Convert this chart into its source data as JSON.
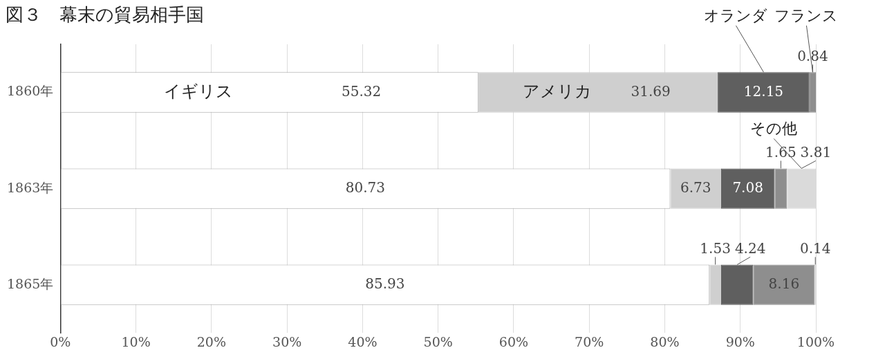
{
  "chart_data": {
    "type": "bar",
    "orientation": "horizontal",
    "stacked": true,
    "title": "図３　幕末の貿易相手国",
    "categories": [
      "1860年",
      "1863年",
      "1865年"
    ],
    "series": [
      {
        "name": "イギリス",
        "color": "#ffffff",
        "values": [
          55.32,
          80.73,
          85.93
        ],
        "value_labels": [
          "55.32",
          "80.73",
          "85.93"
        ]
      },
      {
        "name": "アメリカ",
        "color": "#cfcfcf",
        "values": [
          31.69,
          6.73,
          1.53
        ],
        "value_labels": [
          "31.69",
          "6.73",
          "1.53"
        ]
      },
      {
        "name": "オランダ",
        "color": "#5f5f5f",
        "values": [
          12.15,
          7.08,
          4.24
        ],
        "value_labels": [
          "12.15",
          "7.08",
          "4.24"
        ]
      },
      {
        "name": "フランス",
        "color": "#8e8e8e",
        "values": [
          0.84,
          1.65,
          8.16
        ],
        "value_labels": [
          "0.84",
          "1.65",
          "8.16"
        ]
      },
      {
        "name": "その他",
        "color": "#dadada",
        "values": [
          null,
          3.81,
          0.14
        ],
        "value_labels": [
          null,
          "3.81",
          "0.14"
        ]
      }
    ],
    "xlim": [
      0,
      100
    ],
    "xticks": [
      {
        "value": 0,
        "label": "0%"
      },
      {
        "value": 10,
        "label": "10%"
      },
      {
        "value": 20,
        "label": "20%"
      },
      {
        "value": 30,
        "label": "30%"
      },
      {
        "value": 40,
        "label": "40%"
      },
      {
        "value": 50,
        "label": "50%"
      },
      {
        "value": 60,
        "label": "60%"
      },
      {
        "value": 70,
        "label": "70%"
      },
      {
        "value": 80,
        "label": "80%"
      },
      {
        "value": 90,
        "label": "90%"
      },
      {
        "value": 100,
        "label": "100%"
      }
    ],
    "grid": "x",
    "legend": false
  }
}
